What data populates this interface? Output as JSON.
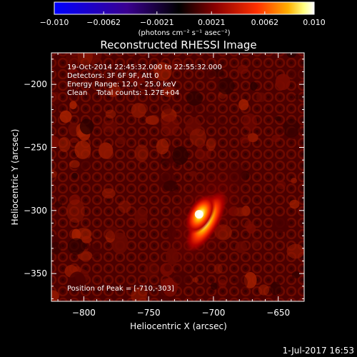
{
  "chart_data": {
    "type": "heatmap",
    "title": "Reconstructed RHESSI Image",
    "xlabel": "Heliocentric X (arcsec)",
    "ylabel": "Heliocentric Y (arcsec)",
    "xlim": [
      -825,
      -630
    ],
    "ylim": [
      -372,
      -175
    ],
    "x_ticks": [
      -800,
      -750,
      -700,
      -650
    ],
    "y_ticks": [
      -200,
      -250,
      -300,
      -350
    ],
    "x_tick_labels": [
      "−800",
      "−750",
      "−700",
      "−650"
    ],
    "y_tick_labels": [
      "−200",
      "−250",
      "−300",
      "−350"
    ],
    "colorbar": {
      "min": -0.01,
      "max": 0.01,
      "tick_labels": [
        "−0.010",
        "−0.0062",
        "−0.0021",
        "0.0021",
        "0.0062",
        "0.010"
      ],
      "tick_values": [
        -0.01,
        -0.0062,
        -0.0021,
        0.0021,
        0.0062,
        0.01
      ],
      "unit_label": "(photons cm⁻² s⁻¹ asec⁻²)"
    },
    "source": {
      "peak_x": -710,
      "peak_y": -303,
      "elongation_angle_deg": -60
    },
    "info_lines": [
      "19-Oct-2014 22:45:32.000 to 22:55:32.000",
      "Detectors: 3F 6F 9F, Att 0",
      "Energy Range: 12.0 - 25.0 keV",
      "Clean    Total counts: 1.27E+04"
    ],
    "peak_text": "Position of Peak = [-710,-303]",
    "footer_date": "1-Jul-2017 16:53"
  },
  "colors": {
    "colormap": [
      "#0000ff",
      "#3a0080",
      "#000000",
      "#7a0000",
      "#ff2a00",
      "#ff9a00",
      "#ffff99",
      "#ffffff"
    ],
    "frame": "#ffffff"
  }
}
